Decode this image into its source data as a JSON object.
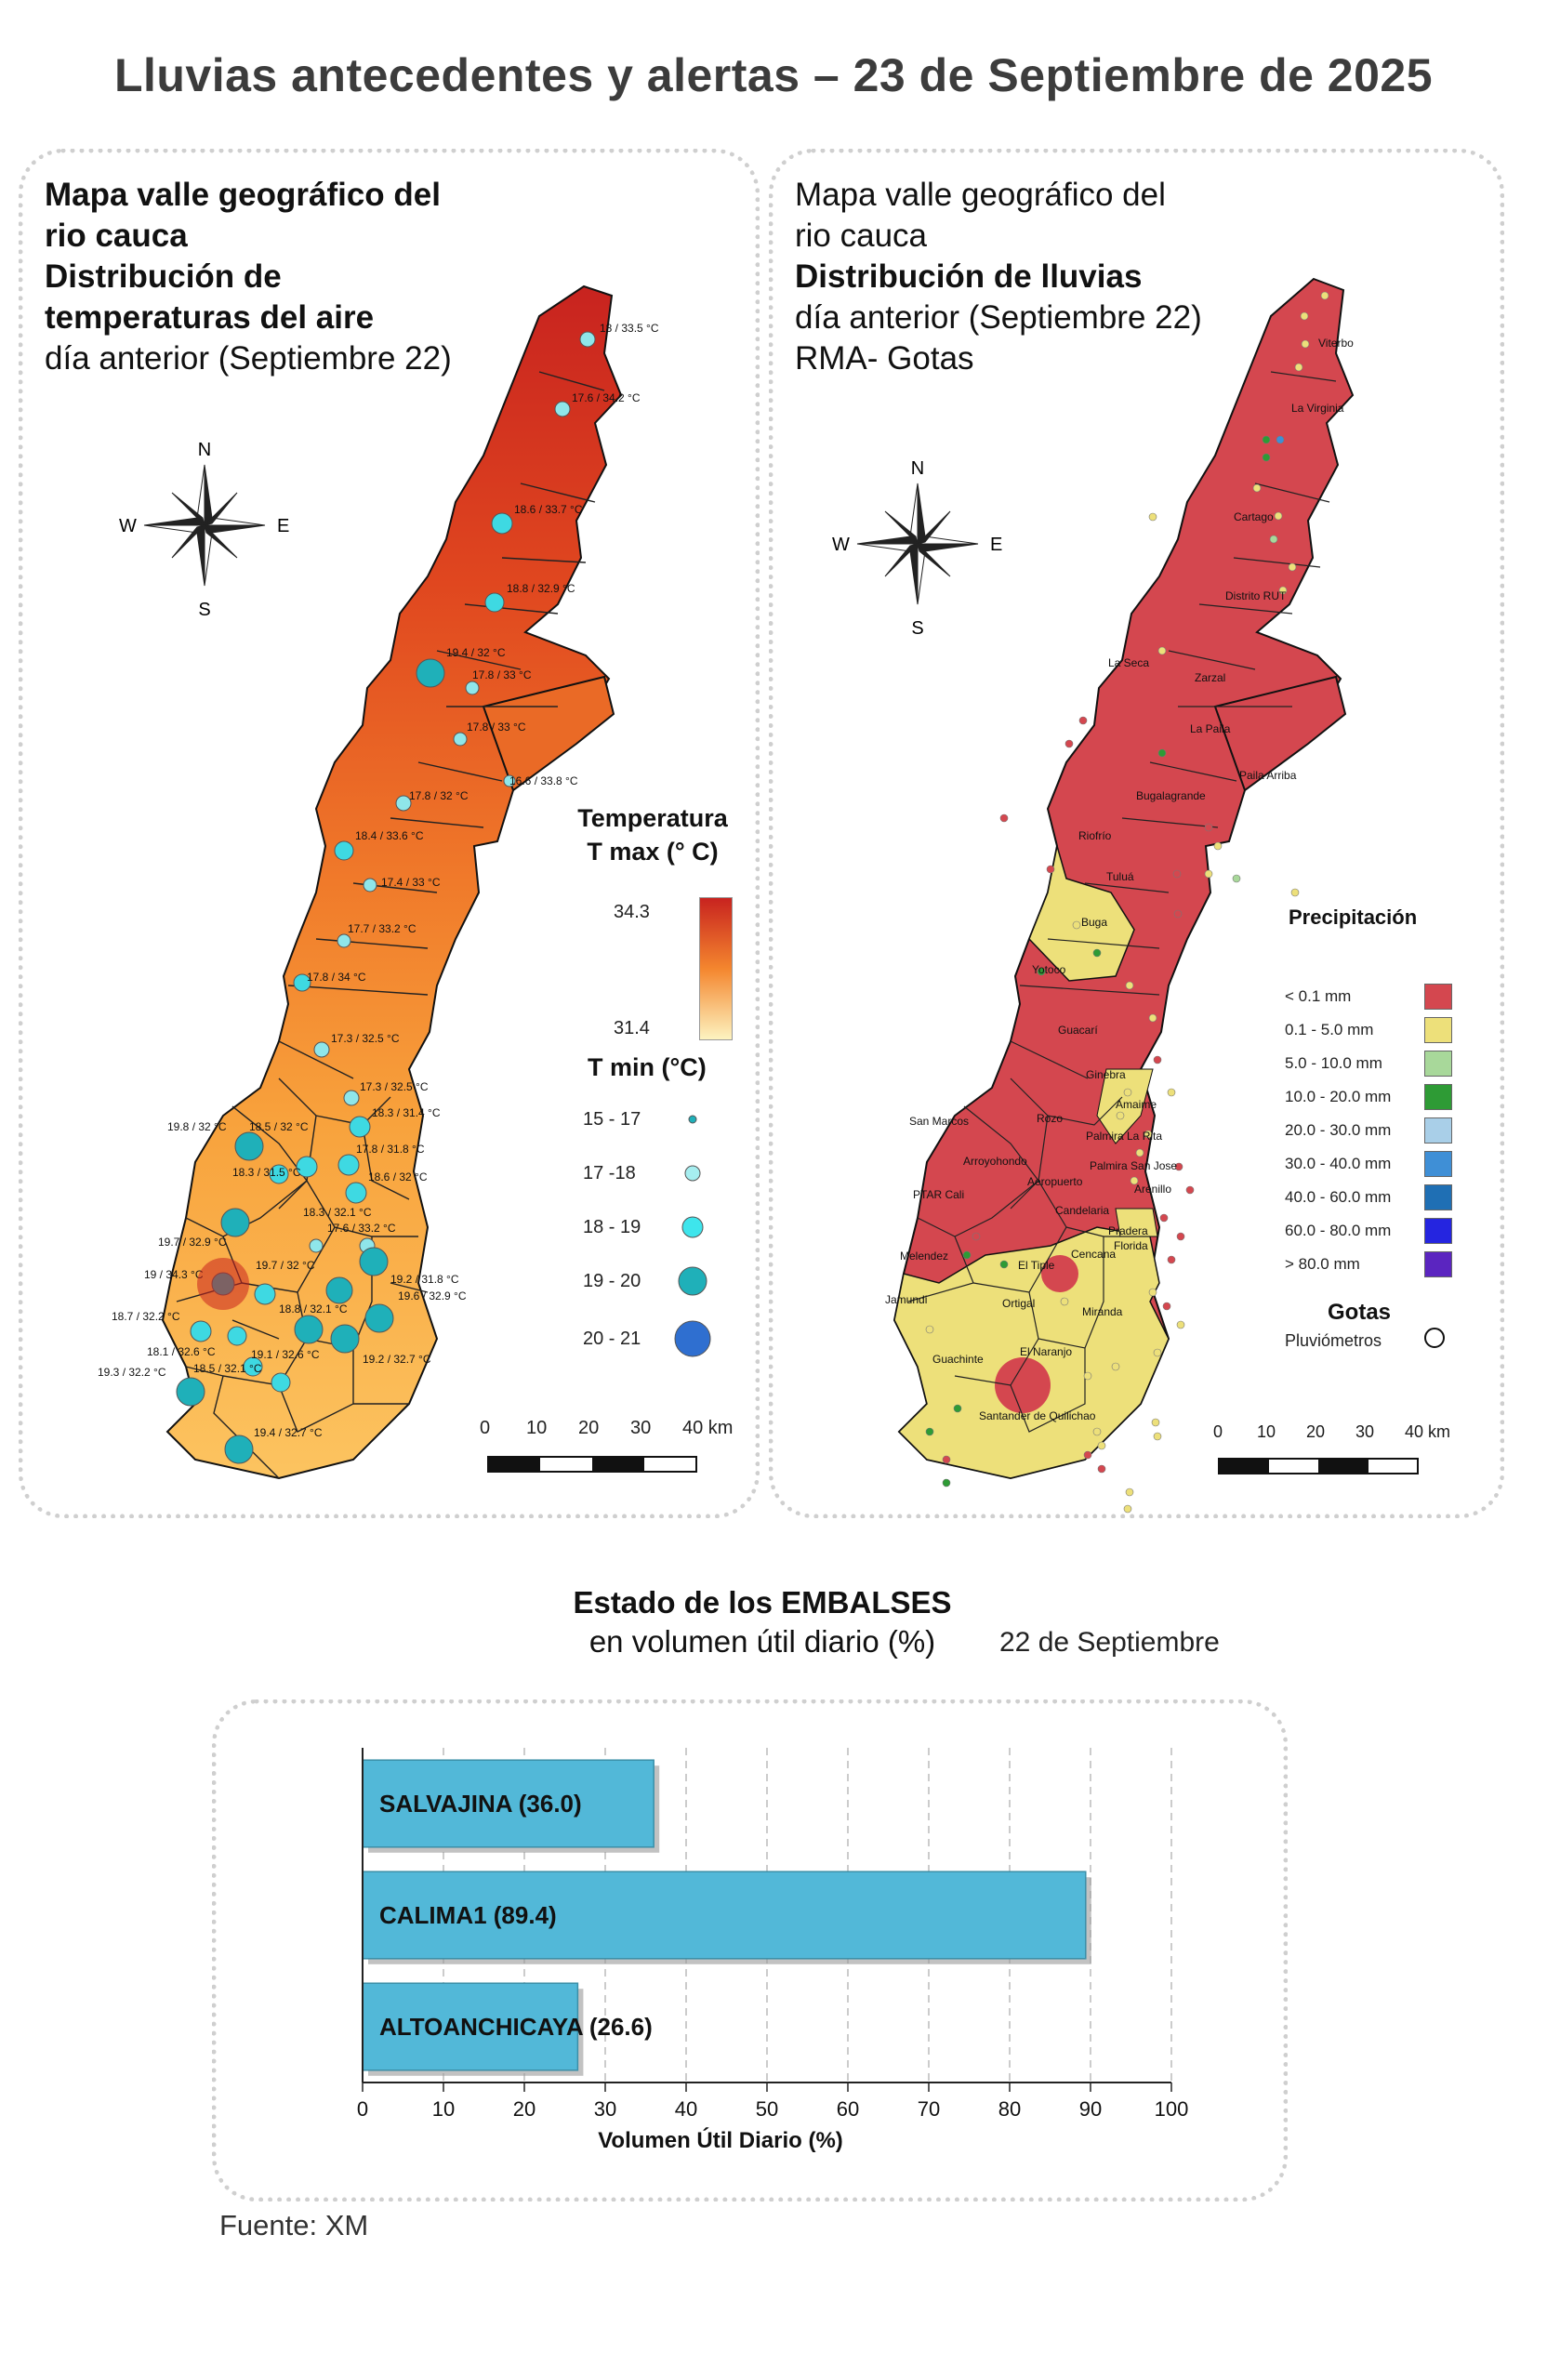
{
  "title": "Lluvias antecedentes y alertas – 23 de Septiembre de 2025",
  "temp_panel": {
    "title_lines": [
      "Mapa valle geográfico del",
      "rio cauca",
      "Distribución de",
      "temperaturas del aire"
    ],
    "subtitle": "día anterior (Septiembre 22)",
    "compass": {
      "n": "N",
      "s": "S",
      "e": "E",
      "w": "W"
    },
    "tmax_title_1": "Temperatura",
    "tmax_title_2": "T max (° C)",
    "tmax_high": "34.3",
    "tmax_low": "31.4",
    "tmin_title": "T min (°C)",
    "tmin_classes": [
      "15 - 17",
      "17 -18",
      "18 - 19",
      "19 - 20",
      "20 - 21"
    ],
    "scale_labels": [
      "0",
      "10",
      "20",
      "30",
      "40 km"
    ],
    "stations": [
      "18 / 33.5 °C",
      "17.6 / 34.2 °C",
      "18.6 / 33.7 °C",
      "18.8 / 32.9 °C",
      "19.4 / 32 °C",
      "17.8 / 33 °C",
      "17.8 / 33 °C",
      "16.6 / 33.8 °C",
      "17.8 / 32 °C",
      "18.4 / 33.6 °C",
      "17.4 / 33 °C",
      "17.7 / 33.2 °C",
      "17.8 / 34 °C",
      "17.3 / 32.5 °C",
      "17.3 / 32.5 °C",
      "18.3 / 31.4 °C",
      "19.8 / 32 °C",
      "18.5 / 32 °C",
      "17.8 / 31.8 °C",
      "18.3 / 31.5 °C",
      "18.6 / 32 °C",
      "18.3 / 32.1 °C",
      "17.6 / 33.2 °C",
      "19.7 / 32.9 °C",
      "19 / 34.3 °C",
      "19.7 / 32 °C",
      "19.2 / 31.8 °C",
      "19.6 / 32.9 °C",
      "18.7 / 32.2 °C",
      "18.8 / 32.1 °C",
      "18.1 / 32.6 °C",
      "19.1 / 32.6 °C",
      "19.2 / 32.7 °C",
      "19.3 / 32.2 °C",
      "18.5 / 32.1 °C",
      "19.4 / 32.7 °C"
    ]
  },
  "rain_panel": {
    "title_lines": [
      "Mapa valle geográfico del",
      "rio cauca"
    ],
    "title_bold": "Distribución de lluvias",
    "subtitle_1": "día anterior (Septiembre 22)",
    "subtitle_2": "RMA- Gotas",
    "compass": {
      "n": "N",
      "s": "S",
      "e": "E",
      "w": "W"
    },
    "legend_title": "Precipitación",
    "classes": [
      {
        "label": "< 0.1 mm",
        "color": "#d4474f"
      },
      {
        "label": "0.1 - 5.0 mm",
        "color": "#ede07a"
      },
      {
        "label": "5.0 - 10.0 mm",
        "color": "#a8d89a"
      },
      {
        "label": "10.0 - 20.0 mm",
        "color": "#2e9b35"
      },
      {
        "label": "20.0 - 30.0 mm",
        "color": "#a9cfe8"
      },
      {
        "label": "30.0 - 40.0 mm",
        "color": "#3f8fd6"
      },
      {
        "label": "40.0 - 60.0 mm",
        "color": "#1f6fb4"
      },
      {
        "label": "60.0 - 80.0 mm",
        "color": "#2525e0"
      },
      {
        "label": "> 80.0 mm",
        "color": "#5b25c0"
      }
    ],
    "gotas_title": "Gotas",
    "gotas_label": "Pluviómetros",
    "scale_labels": [
      "0",
      "10",
      "20",
      "30",
      "40 km"
    ],
    "places": [
      "Viterbo",
      "La Virginia",
      "Cartago",
      "Distrito RUT",
      "La Seca",
      "Zarzal",
      "La Paila",
      "Paila Arriba",
      "Bugalagrande",
      "Riofrío",
      "Tuluá",
      "Buga",
      "Yotoco",
      "Guacarí",
      "Ginebra",
      "Amaime",
      "San Marcos",
      "Rozo",
      "Palmira La Rita",
      "Arroyohondo",
      "Palmira San Jose",
      "Aeropuerto",
      "Arenillo",
      "PTAR Cali",
      "Candelaria",
      "Pradera",
      "Melendez",
      "El Tiple",
      "Cencana",
      "Florida",
      "Jamundi",
      "Ortigal",
      "Miranda",
      "El Naranjo",
      "Guachinte",
      "Santander de Quilichao"
    ]
  },
  "reservoirs": {
    "heading_bold": "Estado de los EMBALSES",
    "heading_normal": "en volumen útil diario (%)",
    "date": "22 de Septiembre",
    "source": "Fuente: XM",
    "bar_color": "#52b8d8"
  },
  "chart_data": {
    "type": "bar",
    "orientation": "horizontal",
    "categories": [
      "SALVAJINA",
      "CALIMA1",
      "ALTOANCHICAYA"
    ],
    "values": [
      36.0,
      89.4,
      26.6
    ],
    "bar_labels": [
      "SALVAJINA (36.0)",
      "CALIMA1 (89.4)",
      "ALTOANCHICAYA (26.6)"
    ],
    "xlabel": "Volumen Útil Diario (%)",
    "xlim": [
      0,
      100
    ],
    "xticks": [
      "0",
      "10",
      "20",
      "30",
      "40",
      "50",
      "60",
      "70",
      "80",
      "90",
      "100"
    ],
    "grid": "vertical dashed"
  }
}
